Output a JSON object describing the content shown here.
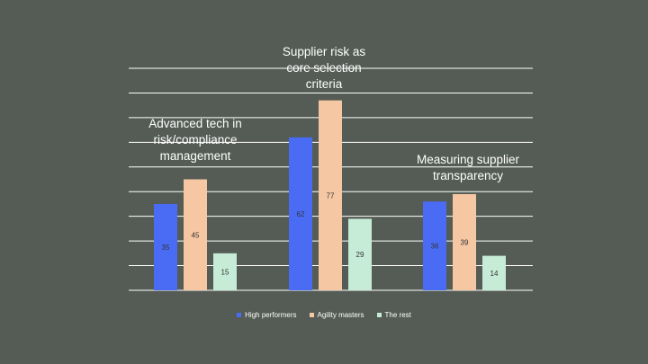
{
  "chart_data": {
    "type": "bar",
    "categories": [
      "Advanced tech in risk/compliance management",
      "Supplier risk as core selection criteria",
      "Measuring supplier transparency"
    ],
    "category_titles": [
      [
        "Advanced tech in",
        "risk/compliance",
        "management"
      ],
      [
        "Supplier risk as",
        "core selection",
        "criteria"
      ],
      [
        "Measuring supplier",
        "transparency"
      ]
    ],
    "series": [
      {
        "name": "High performers",
        "values": [
          35,
          62,
          36
        ],
        "color": "#4a6cf4"
      },
      {
        "name": "Agility masters",
        "values": [
          45,
          77,
          39
        ],
        "color": "#f5c7a3"
      },
      {
        "name": "The rest",
        "values": [
          15,
          29,
          14
        ],
        "color": "#c6ebd6"
      }
    ],
    "ylim": [
      0,
      90
    ],
    "grid": true,
    "legend_position": "bottom",
    "data_labels": true
  },
  "colors": {
    "background": "#545c55",
    "gridline": "#ffffff",
    "label_text": "#333333"
  }
}
